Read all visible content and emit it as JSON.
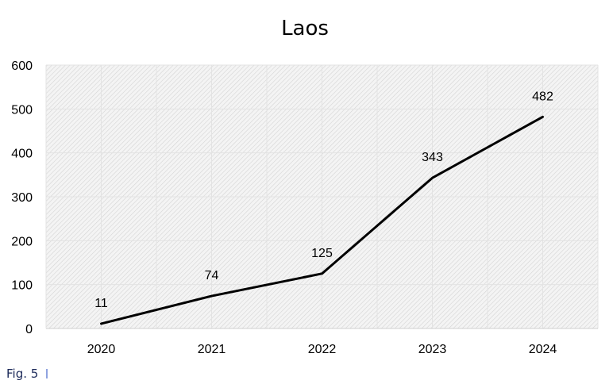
{
  "chart_data": {
    "type": "line",
    "title": "Laos",
    "xlabel": "",
    "ylabel": "",
    "categories": [
      "2020",
      "2021",
      "2022",
      "2023",
      "2024"
    ],
    "values": [
      11,
      74,
      125,
      343,
      482
    ],
    "ylim": [
      0,
      600
    ],
    "yticks": [
      0,
      100,
      200,
      300,
      400,
      500,
      600
    ],
    "grid": true,
    "legend": "none",
    "line_color": "#000000",
    "plot_background": "#f2f2f2"
  },
  "caption": "Fig. 5"
}
